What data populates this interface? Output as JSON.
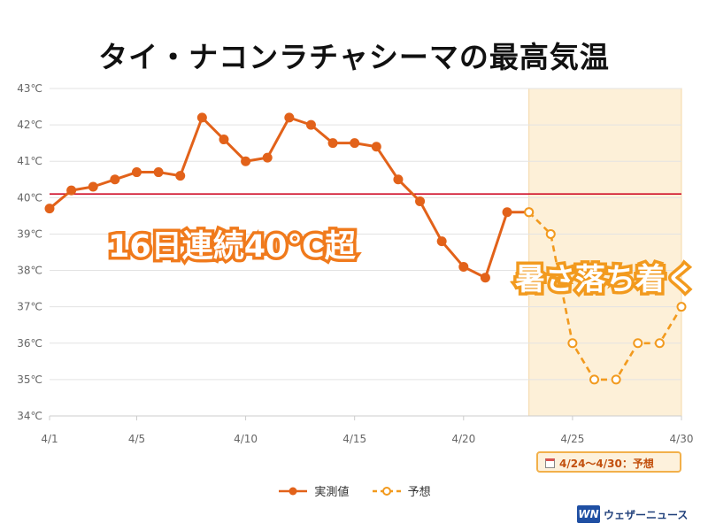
{
  "chart_data": {
    "type": "line",
    "title": "タイ・ナコンラチャシーマの最高気温",
    "x_tick_labels": [
      "4/1",
      "4/5",
      "4/10",
      "4/15",
      "4/20",
      "4/25",
      "4/30"
    ],
    "x_tick_days": [
      1,
      5,
      10,
      15,
      20,
      25,
      30
    ],
    "xlim": [
      1,
      30
    ],
    "ylim": [
      34,
      43
    ],
    "y_tick_labels": [
      "34℃",
      "35℃",
      "36℃",
      "37℃",
      "38℃",
      "39℃",
      "40℃",
      "41℃",
      "42℃",
      "43℃"
    ],
    "y_ticks": [
      34,
      35,
      36,
      37,
      38,
      39,
      40,
      41,
      42,
      43
    ],
    "grid": "horizontal",
    "reference_line": 40.1,
    "forecast_band": [
      23,
      30
    ],
    "series": [
      {
        "name": "実測値",
        "style": "solid",
        "color": "#e2621a",
        "x": [
          1,
          2,
          3,
          4,
          5,
          6,
          7,
          8,
          9,
          10,
          11,
          12,
          13,
          14,
          15,
          16,
          17,
          18,
          19,
          20,
          21,
          22,
          23
        ],
        "y": [
          39.7,
          40.2,
          40.3,
          40.5,
          40.7,
          40.7,
          40.6,
          42.2,
          41.6,
          41.0,
          41.1,
          42.2,
          42.0,
          41.5,
          41.5,
          41.4,
          40.5,
          39.9,
          38.8,
          38.1,
          37.8,
          39.6,
          39.6
        ]
      },
      {
        "name": "予想",
        "style": "dashed",
        "color": "#f29a1e",
        "x": [
          23,
          24,
          25,
          26,
          27,
          28,
          29,
          30
        ],
        "y": [
          39.6,
          39.0,
          36.0,
          35.0,
          35.0,
          36.0,
          36.0,
          37.0
        ]
      }
    ],
    "annotations": [
      "16日連続40℃超",
      "暑さ落ち着く"
    ],
    "forecast_period_label": "4/24〜4/30：予想",
    "legend_position": "bottom"
  },
  "branding": {
    "logo_mark": "WN",
    "logo_text": "ウェザーニュース"
  },
  "colors": {
    "actual": "#e2621a",
    "forecast": "#f29a1e",
    "reference_line": "#d0102a",
    "forecast_band": "#fdf0d8"
  }
}
